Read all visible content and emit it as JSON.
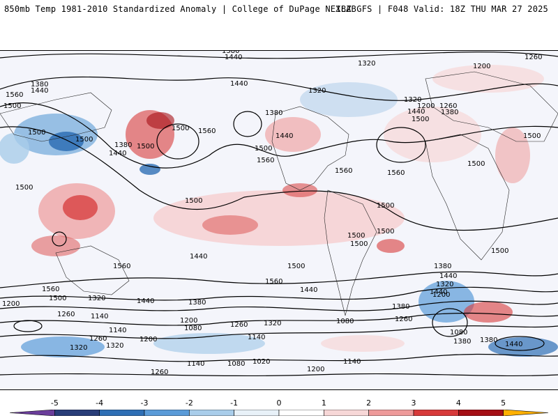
{
  "header": {
    "left_title": "850mb Temp 1981-2010 Standardized Anomaly | College of DuPage NEXLAB",
    "right_title": "18Z GFS | F048 Valid: 18Z THU MAR 27 2025"
  },
  "contour_labels": [
    "1380",
    "1440",
    "1320",
    "1380",
    "1440",
    "1560",
    "1500",
    "1500",
    "1440",
    "1380",
    "1500",
    "1560",
    "1500",
    "1500",
    "1500",
    "1380",
    "1440",
    "1500",
    "1560",
    "1320",
    "1440",
    "1320",
    "1500",
    "1560",
    "1560",
    "1260",
    "1200",
    "1320",
    "1260",
    "1380",
    "1440",
    "1500",
    "1500",
    "1500",
    "1500",
    "1500",
    "1500",
    "1500",
    "1500",
    "1500",
    "1500",
    "1560",
    "1440",
    "1500",
    "1380",
    "1440",
    "1320",
    "1200",
    "1380",
    "1260",
    "1200",
    "1320",
    "1440",
    "1380",
    "1260",
    "1140",
    "1200",
    "1080",
    "1260",
    "1320",
    "1140",
    "1080",
    "1260",
    "1320",
    "1200",
    "1140",
    "1080",
    "1020",
    "1200",
    "1140",
    "1080",
    "1260",
    "1320",
    "1380",
    "1260"
  ],
  "colorbar": {
    "ticks": [
      "-5",
      "-4",
      "-3",
      "-2",
      "-1",
      "0",
      "1",
      "2",
      "3",
      "4",
      "5"
    ],
    "colors": [
      "#6a3d9a",
      "#283d78",
      "#2e6fb5",
      "#5a9bd8",
      "#a9cdea",
      "#e8f1f8",
      "#ffffff",
      "#f7d7d7",
      "#ee9a9a",
      "#d73a3a",
      "#a50f15",
      "#ffb000"
    ]
  }
}
